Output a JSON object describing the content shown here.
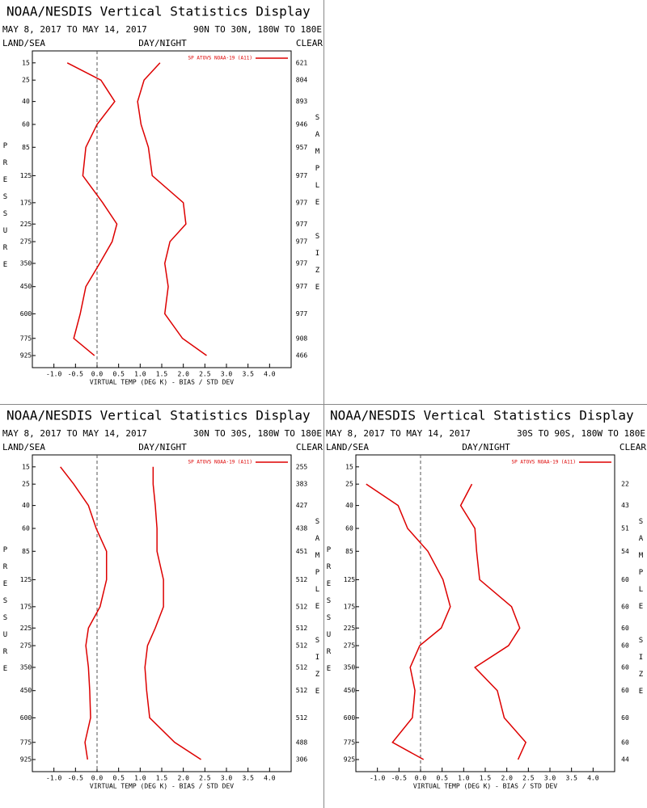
{
  "chart_data": [
    {
      "type": "line",
      "title": "NOAA/NESDIS Vertical Statistics Display",
      "subtitle": "MAY 8, 2017 TO MAY 14, 2017",
      "region": "90N TO 30N, 180W TO 180E",
      "corner_labels": [
        "LAND/SEA",
        "DAY/NIGHT",
        "CLEAR"
      ],
      "y_label": "PRESSURE",
      "y2_label": "SAMPLE SIZE",
      "x_label": "VIRTUAL TEMP (DEG K) - BIAS / STD DEV",
      "pressure_levels": [
        15,
        25,
        40,
        60,
        85,
        125,
        175,
        225,
        275,
        350,
        450,
        600,
        775,
        925
      ],
      "sample_size": [
        621,
        804,
        893,
        946,
        957,
        977,
        977,
        977,
        977,
        977,
        977,
        977,
        908,
        466
      ],
      "series": [
        {
          "name": "SP ATOVS NOAA-19 (A11)",
          "color": "#dd0000",
          "bias": [
            -0.69,
            0.09,
            0.41,
            0.0,
            -0.26,
            -0.33,
            0.13,
            0.46,
            0.35,
            0.06,
            -0.26,
            -0.39,
            -0.54,
            -0.06
          ],
          "std_dev": [
            1.46,
            1.09,
            0.94,
            1.02,
            1.19,
            1.28,
            2.0,
            2.06,
            1.69,
            1.57,
            1.65,
            1.57,
            1.98,
            2.54
          ]
        }
      ],
      "xlim": [
        -1.5,
        4.5
      ],
      "ylim": [
        9,
        1047
      ],
      "zero_line": true,
      "legend": "top-right",
      "xticks": [
        {
          "value": -1.0,
          "label": "-1.0"
        },
        {
          "value": -0.5,
          "label": "-0.5"
        },
        {
          "value": 0.0,
          "label": "0.0"
        },
        {
          "value": 0.5,
          "label": "0.5"
        },
        {
          "value": 1.0,
          "label": "1.0"
        },
        {
          "value": 1.5,
          "label": "1.5"
        },
        {
          "value": 2.0,
          "label": "2.0"
        },
        {
          "value": 2.5,
          "label": "2.5"
        },
        {
          "value": 3.0,
          "label": "3.0"
        },
        {
          "value": 3.5,
          "label": "3.5"
        },
        {
          "value": 4.0,
          "label": "4.0"
        }
      ]
    },
    {
      "type": "line",
      "title": "NOAA/NESDIS Vertical Statistics Display",
      "subtitle": "MAY 8, 2017 TO MAY 14, 2017",
      "region": "30N TO 30S, 180W TO 180E",
      "corner_labels": [
        "LAND/SEA",
        "DAY/NIGHT",
        "CLEAR"
      ],
      "y_label": "PRESSURE",
      "y2_label": "SAMPLE SIZE",
      "x_label": "VIRTUAL TEMP (DEG K) - BIAS / STD DEV",
      "pressure_levels": [
        15,
        25,
        40,
        60,
        85,
        125,
        175,
        225,
        275,
        350,
        450,
        600,
        775,
        925
      ],
      "sample_size": [
        255,
        383,
        427,
        438,
        451,
        512,
        512,
        512,
        512,
        512,
        512,
        512,
        488,
        306
      ],
      "series": [
        {
          "name": "SP ATOVS NOAA-19 (A11)",
          "color": "#dd0000",
          "bias": [
            -0.85,
            -0.54,
            -0.2,
            -0.02,
            0.22,
            0.22,
            0.07,
            -0.2,
            -0.26,
            -0.2,
            -0.17,
            -0.15,
            -0.28,
            -0.22
          ],
          "std_dev": [
            1.3,
            1.3,
            1.35,
            1.39,
            1.39,
            1.54,
            1.54,
            1.35,
            1.17,
            1.11,
            1.15,
            1.22,
            1.8,
            2.41
          ]
        }
      ],
      "xlim": [
        -1.5,
        4.5
      ],
      "ylim": [
        9,
        1047
      ],
      "zero_line": true,
      "legend": "top-right",
      "xticks": [
        {
          "value": -1.0,
          "label": "-1.0"
        },
        {
          "value": -0.5,
          "label": "-0.5"
        },
        {
          "value": 0.0,
          "label": "0.0"
        },
        {
          "value": 0.5,
          "label": "0.5"
        },
        {
          "value": 1.0,
          "label": "1.0"
        },
        {
          "value": 1.5,
          "label": "1.5"
        },
        {
          "value": 2.0,
          "label": "2.0"
        },
        {
          "value": 2.5,
          "label": "2.5"
        },
        {
          "value": 3.0,
          "label": "3.0"
        },
        {
          "value": 3.5,
          "label": "3.5"
        },
        {
          "value": 4.0,
          "label": "4.0"
        }
      ]
    },
    {
      "type": "line",
      "title": "NOAA/NESDIS Vertical Statistics Display",
      "subtitle": "MAY 8, 2017 TO MAY 14, 2017",
      "region": "30S TO 90S, 180W TO 180E",
      "corner_labels": [
        "LAND/SEA",
        "DAY/NIGHT",
        "CLEAR"
      ],
      "y_label": "PRESSURE",
      "y2_label": "SAMPLE SIZE",
      "x_label": "VIRTUAL TEMP (DEG K) - BIAS / STD DEV",
      "pressure_levels": [
        15,
        25,
        40,
        60,
        85,
        125,
        175,
        225,
        275,
        350,
        450,
        600,
        775,
        925
      ],
      "sample_size": [
        null,
        22,
        43,
        51,
        54,
        60,
        60,
        60,
        60,
        60,
        60,
        60,
        60,
        44
      ],
      "series": [
        {
          "name": "SP ATOVS NOAA-19 (A11)",
          "color": "#dd0000",
          "bias": [
            null,
            -1.26,
            -0.52,
            -0.3,
            0.17,
            0.52,
            0.69,
            0.48,
            -0.02,
            -0.24,
            -0.13,
            -0.19,
            -0.65,
            0.07
          ],
          "std_dev": [
            null,
            1.19,
            0.93,
            1.26,
            1.3,
            1.37,
            2.11,
            2.3,
            2.04,
            1.26,
            1.78,
            1.94,
            2.44,
            2.26
          ]
        }
      ],
      "xlim": [
        -1.5,
        4.5
      ],
      "ylim": [
        9,
        1047
      ],
      "zero_line": true,
      "legend": "top-right",
      "xticks": [
        {
          "value": -1.0,
          "label": "-1.0"
        },
        {
          "value": -0.5,
          "label": "-0.5"
        },
        {
          "value": 0.0,
          "label": "0.0"
        },
        {
          "value": 0.5,
          "label": "0.5"
        },
        {
          "value": 1.0,
          "label": "1.0"
        },
        {
          "value": 1.5,
          "label": "1.5"
        },
        {
          "value": 2.0,
          "label": "2.0"
        },
        {
          "value": 2.5,
          "label": "2.5"
        },
        {
          "value": 3.0,
          "label": "3.0"
        },
        {
          "value": 3.5,
          "label": "3.5"
        },
        {
          "value": 4.0,
          "label": "4.0"
        }
      ]
    }
  ]
}
